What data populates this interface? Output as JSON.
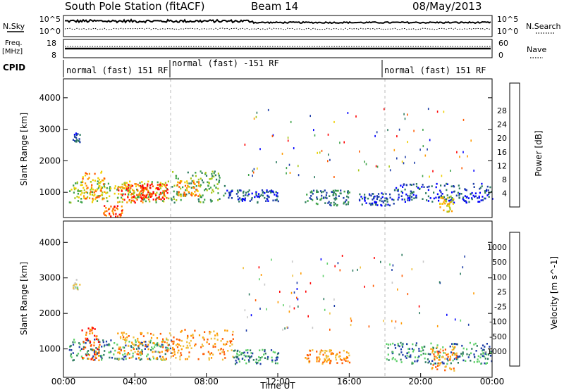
{
  "header": {
    "station": "South Pole Station (fitACF)",
    "beam": "Beam 14",
    "date": "08/May/2013"
  },
  "noise_panel": {
    "left_label": "N.Sky",
    "left_ticks": [
      "10^5",
      "10^0"
    ],
    "right_label": "N.Search",
    "right_ticks": [
      "10^5",
      "10^0"
    ]
  },
  "freq_panel": {
    "left_label_line1": "Freq.",
    "left_label_line2": "[MHz]",
    "left_ticks": [
      "18",
      "8"
    ],
    "right_label": "Nave",
    "right_ticks": [
      "60",
      "0"
    ]
  },
  "cpid": {
    "label": "CPID",
    "segments": [
      {
        "start_hour": 0,
        "end_hour": 6,
        "text": "normal (fast) 151 RF"
      },
      {
        "start_hour": 6,
        "end_hour": 18,
        "text": "normal (fast) -151 RF"
      },
      {
        "start_hour": 18,
        "end_hour": 24,
        "text": "normal (fast) 151 RF"
      }
    ]
  },
  "chart_data": [
    {
      "type": "heatmap",
      "name": "power",
      "ylabel": "Slant Range [km]",
      "yticks": [
        1000,
        2000,
        3000,
        4000
      ],
      "ylim": [
        200,
        4600
      ],
      "xlim_hours": [
        0,
        24
      ],
      "colorbar": {
        "label": "Power [dB]",
        "ticks": [
          "4",
          "8",
          "12",
          "16",
          "20",
          "24",
          "28"
        ],
        "colors": [
          "#0000ff",
          "#1e3ea8",
          "#2e7c60",
          "#3fa34a",
          "#a8c81a",
          "#f0d000",
          "#ff9a00",
          "#ff5a00",
          "#ff0000"
        ]
      },
      "regions": [
        {
          "x0": 0.3,
          "x1": 6.0,
          "y0": 700,
          "y1": 1400,
          "level": 4
        },
        {
          "x0": 1.0,
          "x1": 2.3,
          "y0": 800,
          "y1": 1700,
          "level": 6
        },
        {
          "x0": 3.0,
          "x1": 5.0,
          "y0": 700,
          "y1": 1300,
          "level": 7
        },
        {
          "x0": 4.2,
          "x1": 5.8,
          "y0": 800,
          "y1": 1300,
          "level": 8
        },
        {
          "x0": 2.2,
          "x1": 3.3,
          "y0": 250,
          "y1": 600,
          "level": 7
        },
        {
          "x0": 6.0,
          "x1": 9.0,
          "y0": 700,
          "y1": 1700,
          "level": 3
        },
        {
          "x0": 6.3,
          "x1": 7.6,
          "y0": 900,
          "y1": 1400,
          "level": 6
        },
        {
          "x0": 9.0,
          "x1": 12.0,
          "y0": 700,
          "y1": 1100,
          "level": 1
        },
        {
          "x0": 13.5,
          "x1": 16.0,
          "y0": 600,
          "y1": 1100,
          "level": 2
        },
        {
          "x0": 16.5,
          "x1": 18.5,
          "y0": 600,
          "y1": 1000,
          "level": 1
        },
        {
          "x0": 18.5,
          "x1": 24.0,
          "y0": 700,
          "y1": 1300,
          "level": 1
        },
        {
          "x0": 21.0,
          "x1": 21.8,
          "y0": 400,
          "y1": 900,
          "level": 5
        },
        {
          "x0": 0.5,
          "x1": 0.9,
          "y0": 2600,
          "y1": 2900,
          "level": 1
        }
      ]
    },
    {
      "type": "heatmap",
      "name": "velocity",
      "ylabel": "Slant Range [km]",
      "yticks": [
        1000,
        2000,
        3000,
        4000
      ],
      "ylim": [
        200,
        4600
      ],
      "xlim_hours": [
        0,
        24
      ],
      "xlabel": "Time UT",
      "xticks": [
        "00:00",
        "04:00",
        "08:00",
        "12:00",
        "16:00",
        "20:00",
        "00:00"
      ],
      "colorbar": {
        "label": "Velocity [m s^-1]",
        "ticks": [
          "-1000",
          "-500",
          "-100",
          "-25",
          "25",
          "100",
          "500",
          "1000"
        ],
        "colors": [
          "#ff0000",
          "#ff5a00",
          "#ff9a00",
          "#f0c040",
          "#c8c8c8",
          "#5fd06a",
          "#2e7c60",
          "#1e3ea8",
          "#0000ff"
        ]
      },
      "regions": [
        {
          "x0": 0.3,
          "x1": 6.0,
          "y0": 700,
          "y1": 1300,
          "level": 6
        },
        {
          "x0": 1.0,
          "x1": 2.0,
          "y0": 700,
          "y1": 1700,
          "level": 1
        },
        {
          "x0": 3.0,
          "x1": 6.0,
          "y0": 700,
          "y1": 1500,
          "level": 2
        },
        {
          "x0": 6.0,
          "x1": 9.5,
          "y0": 700,
          "y1": 1600,
          "level": 2
        },
        {
          "x0": 9.5,
          "x1": 12.0,
          "y0": 600,
          "y1": 1000,
          "level": 6
        },
        {
          "x0": 13.5,
          "x1": 16.0,
          "y0": 600,
          "y1": 1000,
          "level": 2
        },
        {
          "x0": 18.0,
          "x1": 24.0,
          "y0": 600,
          "y1": 1200,
          "level": 6
        },
        {
          "x0": 20.5,
          "x1": 22.0,
          "y0": 400,
          "y1": 1100,
          "level": 2
        },
        {
          "x0": 0.5,
          "x1": 0.9,
          "y0": 2700,
          "y1": 3000,
          "level": 4
        }
      ]
    }
  ]
}
